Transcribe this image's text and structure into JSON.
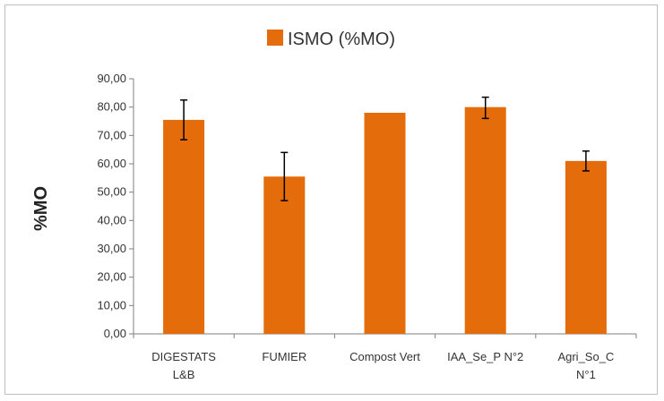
{
  "chart_data": {
    "type": "bar",
    "legend": "ISMO (%MO)",
    "legend_position": "top",
    "ylabel": "%MO",
    "xlabel": "",
    "ylim": [
      0,
      90
    ],
    "yticks": [
      "0,00",
      "10,00",
      "20,00",
      "30,00",
      "40,00",
      "50,00",
      "60,00",
      "70,00",
      "80,00",
      "90,00"
    ],
    "grid": false,
    "categories": [
      [
        "DIGESTATS",
        "L&B"
      ],
      [
        "FUMIER"
      ],
      [
        "Compost Vert"
      ],
      [
        "IAA_Se_P N°2"
      ],
      [
        "Agri_So_C",
        "N°1"
      ]
    ],
    "series": [
      {
        "name": "ISMO (%MO)",
        "color": "#E46C0A",
        "values": [
          75.5,
          55.5,
          78.0,
          80.0,
          61.0
        ],
        "error_low": [
          68.5,
          47.0,
          null,
          76.0,
          57.5
        ],
        "error_high": [
          82.5,
          64.0,
          null,
          83.5,
          64.5
        ]
      }
    ]
  }
}
